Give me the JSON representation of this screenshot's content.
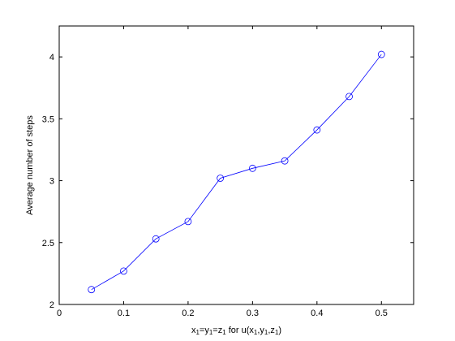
{
  "chart_data": {
    "type": "line",
    "title": "",
    "xlabel": {
      "parts": [
        {
          "text": "x"
        },
        {
          "text": "1",
          "sub": true
        },
        {
          "text": "=y"
        },
        {
          "text": "1",
          "sub": true
        },
        {
          "text": "=z"
        },
        {
          "text": "1",
          "sub": true
        },
        {
          "text": " for u(x"
        },
        {
          "text": "1",
          "sub": true
        },
        {
          "text": ",y"
        },
        {
          "text": "1",
          "sub": true
        },
        {
          "text": ",z"
        },
        {
          "text": "1",
          "sub": true
        },
        {
          "text": ")"
        }
      ]
    },
    "ylabel": "Average number of steps",
    "xlim": [
      0,
      0.55
    ],
    "ylim": [
      2,
      4.25
    ],
    "xticks": [
      0,
      0.1,
      0.2,
      0.3,
      0.4,
      0.5
    ],
    "xtick_labels": [
      "0",
      "0.1",
      "0.2",
      "0.3",
      "0.4",
      "0.5"
    ],
    "yticks": [
      2,
      2.5,
      3,
      3.5,
      4
    ],
    "ytick_labels": [
      "2",
      "2.5",
      "3",
      "3.5",
      "4"
    ],
    "grid": false,
    "series": [
      {
        "x": [
          0.05,
          0.1,
          0.15,
          0.2,
          0.25,
          0.3,
          0.35,
          0.4,
          0.45,
          0.5
        ],
        "y": [
          2.12,
          2.27,
          2.53,
          2.67,
          3.02,
          3.1,
          3.16,
          3.41,
          3.68,
          4.02
        ],
        "color": "#0000ff",
        "marker": "circle"
      }
    ]
  }
}
